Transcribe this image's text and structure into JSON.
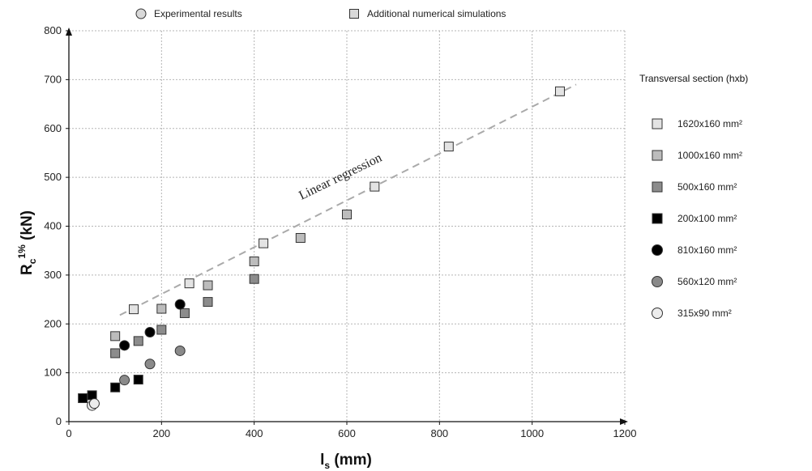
{
  "chart_data": {
    "type": "scatter",
    "xlabel": {
      "main": "l",
      "sub": "s",
      "unit": " (mm)"
    },
    "ylabel": {
      "main": "R",
      "sub": "c",
      "sup": "1%",
      "unit": " (kN)"
    },
    "xlim": [
      0,
      1200
    ],
    "ylim": [
      0,
      800
    ],
    "xticks": [
      0,
      200,
      400,
      600,
      800,
      1000,
      1200
    ],
    "yticks": [
      0,
      100,
      200,
      300,
      400,
      500,
      600,
      700,
      800
    ],
    "grid": true,
    "top_legend": [
      {
        "marker": "circle",
        "color": "#d9d9d9",
        "label": "Experimental results"
      },
      {
        "marker": "square",
        "color": "#d9d9d9",
        "label": "Additional numerical simulations"
      }
    ],
    "legend_title": "Transversal section (hxb)",
    "legend_placement": "right",
    "series": [
      {
        "name": "1620x160 mm²",
        "marker": "square",
        "color": "#e3e3e3",
        "points": [
          [
            140,
            230
          ],
          [
            260,
            283
          ],
          [
            420,
            365
          ],
          [
            660,
            481
          ],
          [
            820,
            563
          ],
          [
            1060,
            676
          ]
        ]
      },
      {
        "name": "1000x160 mm²",
        "marker": "square",
        "color": "#bcbcbc",
        "points": [
          [
            100,
            175
          ],
          [
            200,
            231
          ],
          [
            300,
            279
          ],
          [
            400,
            328
          ],
          [
            500,
            376
          ],
          [
            600,
            424
          ]
        ]
      },
      {
        "name": "500x160 mm²",
        "marker": "square",
        "color": "#8c8c8c",
        "points": [
          [
            100,
            140
          ],
          [
            150,
            165
          ],
          [
            200,
            188
          ],
          [
            250,
            222
          ],
          [
            300,
            245
          ],
          [
            400,
            292
          ]
        ]
      },
      {
        "name": "200x100 mm²",
        "marker": "square",
        "color": "#000000",
        "points": [
          [
            30,
            48
          ],
          [
            50,
            54
          ],
          [
            100,
            70
          ],
          [
            150,
            86
          ]
        ]
      },
      {
        "name": "810x160 mm²",
        "marker": "circle",
        "color": "#000000",
        "points": [
          [
            120,
            156
          ],
          [
            175,
            183
          ],
          [
            240,
            240
          ]
        ]
      },
      {
        "name": "560x120 mm²",
        "marker": "circle",
        "color": "#8a8a8a",
        "points": [
          [
            120,
            85
          ],
          [
            175,
            118
          ],
          [
            240,
            145
          ]
        ]
      },
      {
        "name": "315x90 mm²",
        "marker": "circle",
        "color": "#ececec",
        "points": [
          [
            50,
            33
          ],
          [
            55,
            37
          ]
        ]
      }
    ],
    "regression": {
      "label": "Linear regression",
      "x": [
        110,
        1095
      ],
      "y": [
        218,
        690
      ],
      "color": "#aaaaaa"
    }
  }
}
